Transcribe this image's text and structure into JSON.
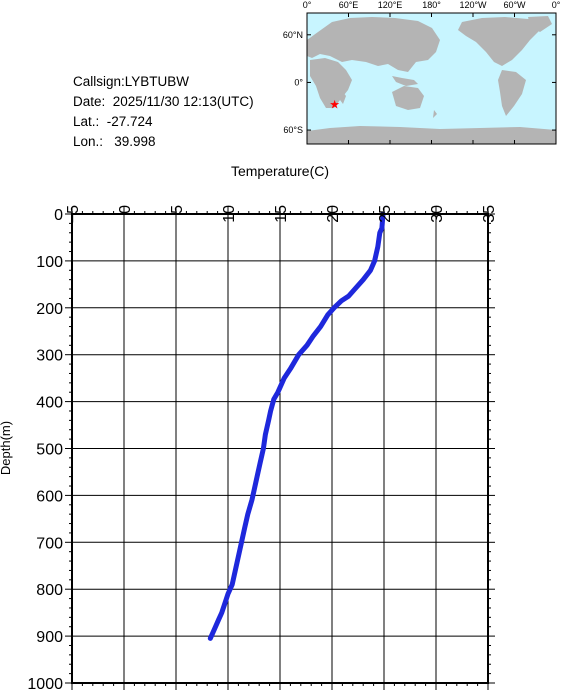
{
  "info": {
    "callsign": "Callsign:LYBTUBW",
    "date": "Date:  2025/11/30 12:13(UTC)",
    "lat": "Lat.:  -27.724",
    "lon": "Lon.:   39.998"
  },
  "map": {
    "lon_labels": [
      "0°",
      "60°E",
      "120°E",
      "180°",
      "120°W",
      "60°W",
      "0°"
    ],
    "lat_labels": [
      "60°N",
      "0°",
      "60°S"
    ],
    "ocean_color": "#c8f5ff",
    "land_color": "#b4b4b4",
    "marker_color": "#ff0000",
    "marker": {
      "lon": 39.998,
      "lat": -27.724
    }
  },
  "chart_data": {
    "type": "line",
    "title": "",
    "xlabel": "Temperature(C)",
    "ylabel": "Depth(m)",
    "xlim": [
      -5,
      35
    ],
    "ylim": [
      0,
      1000
    ],
    "y_inverted": true,
    "x_axis_position": "top",
    "grid": true,
    "x_ticks": [
      "-5",
      "0",
      "5",
      "10",
      "15",
      "20",
      "25",
      "30",
      "35"
    ],
    "y_ticks": [
      "0",
      "100",
      "200",
      "300",
      "400",
      "500",
      "600",
      "700",
      "800",
      "900",
      "1000"
    ],
    "line_color": "#1e28dc",
    "series": [
      {
        "x": [
          24.9,
          24.8,
          24.6,
          24.4,
          24.1,
          23.7,
          23.0,
          22.2,
          21.6,
          20.9,
          20.2,
          19.6,
          18.9,
          18.2,
          17.6,
          16.8,
          16.0,
          15.4,
          14.8,
          14.4,
          14.1,
          13.9,
          13.6,
          13.4,
          13.1,
          12.8,
          12.5,
          12.3,
          11.9,
          11.6,
          11.3,
          11.0,
          10.7,
          10.4,
          10.0,
          9.7,
          9.4,
          9.1,
          8.8,
          8.5,
          8.3
        ],
        "y": [
          0,
          30,
          40,
          70,
          100,
          120,
          140,
          160,
          175,
          185,
          200,
          215,
          240,
          260,
          280,
          300,
          330,
          350,
          380,
          395,
          420,
          440,
          470,
          500,
          530,
          560,
          590,
          610,
          640,
          670,
          700,
          730,
          760,
          790,
          810,
          830,
          850,
          865,
          880,
          895,
          905
        ]
      }
    ]
  }
}
